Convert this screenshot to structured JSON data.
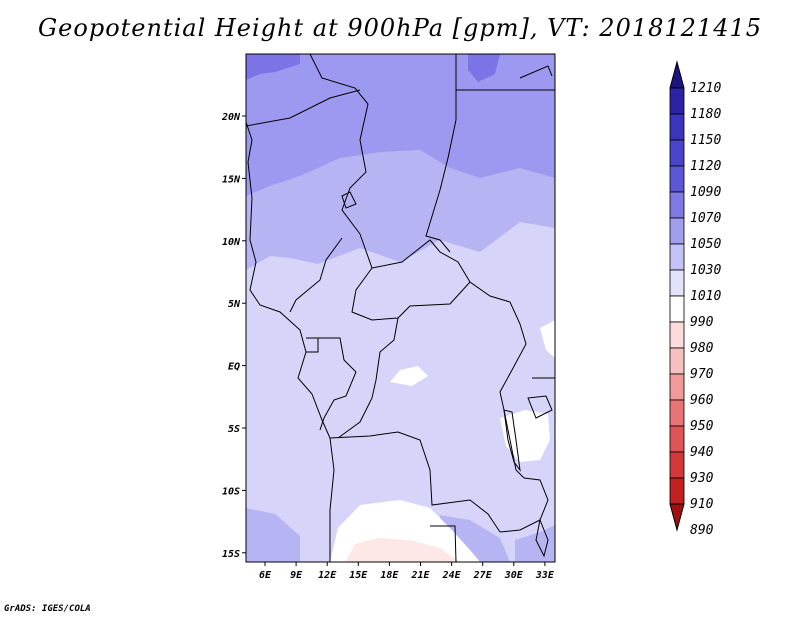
{
  "title": "Geopotential Height at 900hPa [gpm], VT: 2018121415",
  "credit": "GrADS: IGES/COLA",
  "map": {
    "lon_labels": [
      "6E",
      "9E",
      "12E",
      "15E",
      "18E",
      "21E",
      "24E",
      "27E",
      "30E",
      "33E"
    ],
    "lat_labels": [
      "20N",
      "15N",
      "10N",
      "5N",
      "EQ",
      "5S",
      "10S",
      "15S"
    ],
    "fill_colors": {
      "h1090": "#7b73e6",
      "h1070": "#9e99f0",
      "h1050": "#b7b4f4",
      "h1030": "#d6d5f9",
      "h1010": "#ffffff",
      "h990": "#fde7e7"
    }
  },
  "colorbar": {
    "levels": [
      "1210",
      "1180",
      "1150",
      "1120",
      "1090",
      "1070",
      "1050",
      "1030",
      "1010",
      "990",
      "980",
      "970",
      "960",
      "950",
      "940",
      "930",
      "910",
      "890"
    ],
    "colors": [
      "#1d1480",
      "#2b22a4",
      "#3b34bd",
      "#4a44cc",
      "#5d57d8",
      "#7f79e4",
      "#a29eee",
      "#c4c2f6",
      "#e3e2fb",
      "#ffffff",
      "#fbdcdc",
      "#f7c0c0",
      "#f19a9a",
      "#e87575",
      "#df5555",
      "#d53838",
      "#c21f1f",
      "#a01010"
    ]
  }
}
